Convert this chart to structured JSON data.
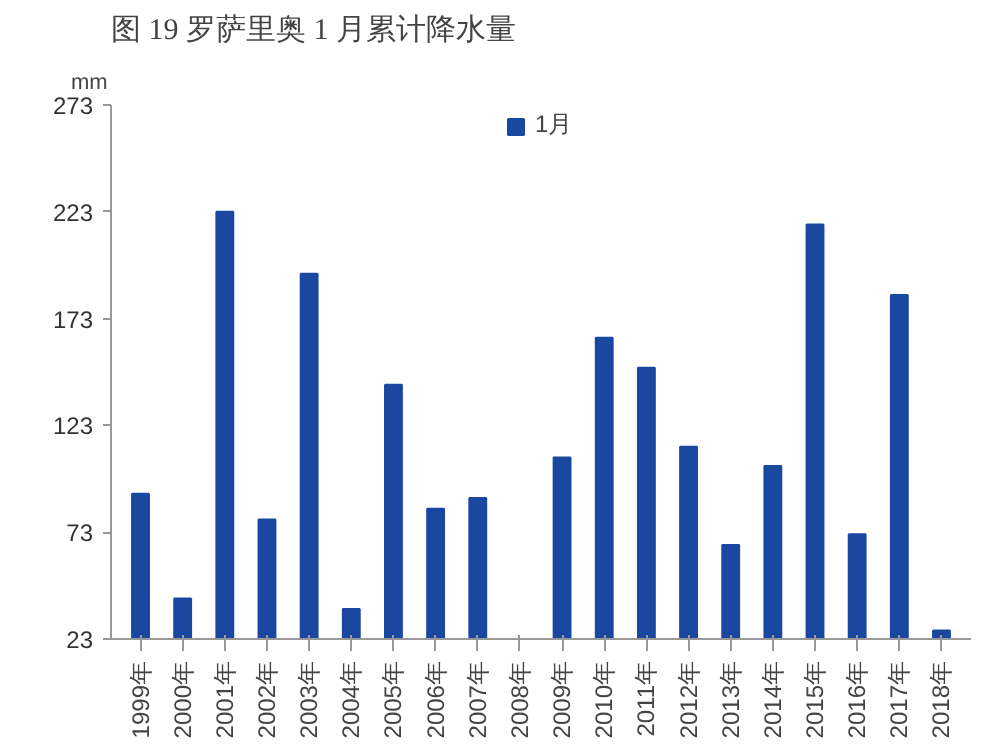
{
  "chart_data": {
    "type": "bar",
    "title": "图 19 罗萨里奥 1 月累计降水量",
    "ylabel": "mm",
    "categories": [
      "1999年",
      "2000年",
      "2001年",
      "2002年",
      "2003年",
      "2004年",
      "2005年",
      "2006年",
      "2007年",
      "2008年",
      "2009年",
      "2010年",
      "2011年",
      "2012年",
      "2013年",
      "2014年",
      "2015年",
      "2016年",
      "2017年",
      "2018年"
    ],
    "series": [
      {
        "name": "1月",
        "color": "#1a47a0",
        "values": [
          91,
          42,
          223,
          79,
          194,
          37,
          142,
          84,
          89,
          null,
          108,
          164,
          150,
          113,
          67,
          104,
          217,
          72,
          184,
          27
        ]
      }
    ],
    "ylim": [
      23,
      273
    ],
    "yticks": [
      23,
      73,
      123,
      173,
      223,
      273
    ],
    "grid": false,
    "legend": "top"
  }
}
